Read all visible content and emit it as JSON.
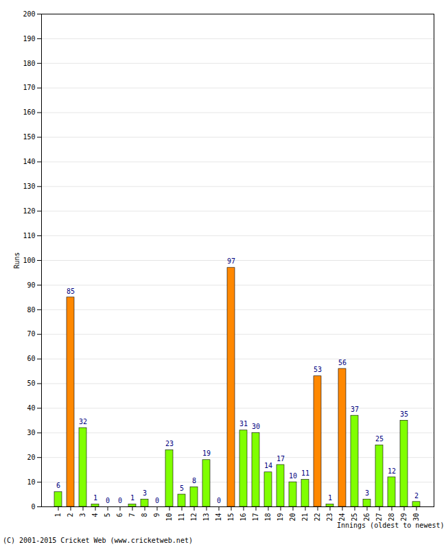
{
  "chart_data": {
    "type": "bar",
    "x_label": "Innings (oldest to newest)",
    "y_label": "Runs",
    "caption": "(C) 2001-2015 Cricket Web (www.cricketweb.net)",
    "categories": [
      1,
      2,
      3,
      4,
      5,
      6,
      7,
      8,
      9,
      10,
      11,
      12,
      13,
      14,
      15,
      16,
      17,
      18,
      19,
      20,
      21,
      22,
      23,
      24,
      25,
      26,
      27,
      28,
      29,
      30
    ],
    "values": [
      6,
      85,
      32,
      1,
      0,
      0,
      1,
      3,
      0,
      23,
      5,
      8,
      19,
      0,
      97,
      31,
      30,
      14,
      17,
      10,
      11,
      53,
      1,
      56,
      37,
      3,
      25,
      12,
      35,
      2
    ],
    "colors": [
      "#80ff00",
      "#ff8800",
      "#80ff00",
      "#80ff00",
      "#80ff00",
      "#80ff00",
      "#80ff00",
      "#80ff00",
      "#80ff00",
      "#80ff00",
      "#80ff00",
      "#80ff00",
      "#80ff00",
      "#80ff00",
      "#ff8800",
      "#80ff00",
      "#80ff00",
      "#80ff00",
      "#80ff00",
      "#80ff00",
      "#80ff00",
      "#ff8800",
      "#80ff00",
      "#ff8800",
      "#80ff00",
      "#80ff00",
      "#80ff00",
      "#80ff00",
      "#80ff00",
      "#80ff00"
    ],
    "ylim": [
      0,
      200
    ],
    "yticks": [
      0,
      10,
      20,
      30,
      40,
      50,
      60,
      70,
      80,
      90,
      100,
      110,
      120,
      130,
      140,
      150,
      160,
      170,
      180,
      190,
      200
    ],
    "grid": true,
    "data_labels": true
  }
}
